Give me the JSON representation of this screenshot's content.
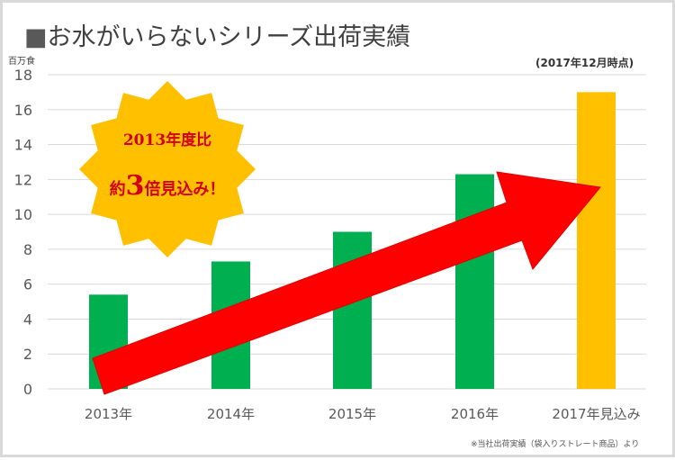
{
  "title": {
    "square": "■",
    "text": "お水がいらないシリーズ出荷実績"
  },
  "unit_label": "百万食",
  "as_of": "(2017年12月時点)",
  "footnote": "※当社出荷実績（袋入りストレート商品）より",
  "callout": {
    "line1": "2013年度比",
    "line2_prefix": "約",
    "line2_number": "3",
    "line2_suffix": "倍見込み！",
    "fill_color": "#FFC000",
    "text_color": "#D0021B"
  },
  "colors": {
    "actual_bar": "#00B050",
    "forecast_bar": "#FFC000",
    "arrow": "#FF0000",
    "grid": "#d9d9d9",
    "axis_text": "#595959"
  },
  "y_ticks": [
    "0",
    "2",
    "4",
    "6",
    "8",
    "10",
    "12",
    "14",
    "16",
    "18"
  ],
  "x_labels": [
    "2013年",
    "2014年",
    "2015年",
    "2016年",
    "2017年見込み"
  ],
  "chart_data": {
    "type": "bar",
    "title": "お水がいらないシリーズ出荷実績",
    "subtitle": "(2017年12月時点)",
    "categories": [
      "2013年",
      "2014年",
      "2015年",
      "2016年",
      "2017年見込み"
    ],
    "values": [
      5.4,
      7.3,
      9.0,
      12.3,
      17.0
    ],
    "series": [
      {
        "name": "出荷実績",
        "values": [
          5.4,
          7.3,
          9.0,
          12.3,
          null
        ],
        "color": "#00B050"
      },
      {
        "name": "見込み",
        "values": [
          null,
          null,
          null,
          null,
          17.0
        ],
        "color": "#FFC000"
      }
    ],
    "xlabel": "",
    "ylabel": "百万食",
    "ylim": [
      0,
      18
    ],
    "yticks": [
      0,
      2,
      4,
      6,
      8,
      10,
      12,
      14,
      16,
      18
    ],
    "grid": true,
    "legend": "none",
    "annotations": [
      "2013年度比 約3倍見込み！",
      "upward red arrow from 2013 to 2017",
      "※当社出荷実績（袋入りストレート商品）より"
    ]
  }
}
